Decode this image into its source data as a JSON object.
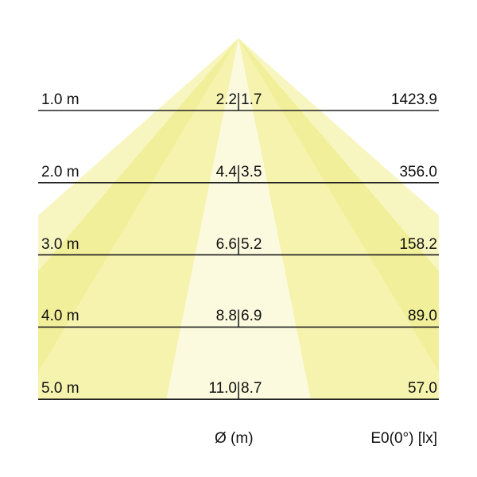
{
  "diagram": {
    "rows": [
      {
        "distance": "1.0 m",
        "diameter_a": "2.2",
        "diameter_b": "1.7",
        "illuminance": "1423.9"
      },
      {
        "distance": "2.0 m",
        "diameter_a": "4.4",
        "diameter_b": "3.5",
        "illuminance": "356.0"
      },
      {
        "distance": "3.0 m",
        "diameter_a": "6.6",
        "diameter_b": "5.2",
        "illuminance": "158.2"
      },
      {
        "distance": "4.0 m",
        "diameter_a": "8.8",
        "diameter_b": "6.9",
        "illuminance": "89.0"
      },
      {
        "distance": "5.0 m",
        "diameter_a": "11.0",
        "diameter_b": "8.7",
        "illuminance": "57.0"
      }
    ],
    "diameter_label": "Ø (m)",
    "illuminance_label": "E0(0°) [lx]",
    "colors": {
      "outer_cone": "#f8f6c0",
      "mid_cone": "#f2ef9a",
      "inner_band": "#fbfade",
      "line": "#222222"
    }
  }
}
